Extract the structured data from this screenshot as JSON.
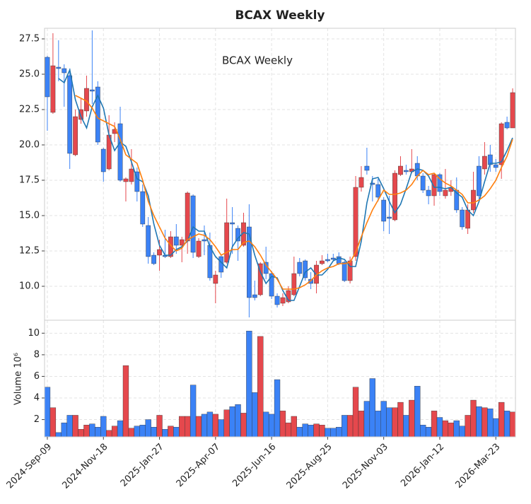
{
  "chart_data": {
    "type": "candlestick",
    "title": "BCAX  Weekly",
    "annotation": "BCAX  Weekly",
    "categories": [
      "2024-Sep-09",
      "2024-Sep-16",
      "2024-Sep-23",
      "2024-Sep-30",
      "2024-Oct-07",
      "2024-Oct-14",
      "2024-Oct-21",
      "2024-Oct-28",
      "2024-Nov-04",
      "2024-Nov-11",
      "2024-Nov-18",
      "2024-Nov-25",
      "2024-Dec-02",
      "2024-Dec-09",
      "2024-Dec-16",
      "2024-Dec-23",
      "2024-Dec-30",
      "2025-Jan-06",
      "2025-Jan-13",
      "2025-Jan-20",
      "2025-Jan-27",
      "2025-Feb-03",
      "2025-Feb-10",
      "2025-Feb-17",
      "2025-Feb-24",
      "2025-Mar-03",
      "2025-Mar-10",
      "2025-Mar-17",
      "2025-Mar-24",
      "2025-Mar-31",
      "2025-Apr-07",
      "2025-Apr-14",
      "2025-Apr-21",
      "2025-Apr-28",
      "2025-May-05",
      "2025-May-12",
      "2025-May-19",
      "2025-May-26",
      "2025-Jun-02",
      "2025-Jun-09",
      "2025-Jun-16",
      "2025-Jun-23",
      "2025-Jun-30",
      "2025-Jul-07",
      "2025-Jul-14",
      "2025-Jul-21",
      "2025-Jul-28",
      "2025-Aug-04",
      "2025-Aug-11",
      "2025-Aug-18",
      "2025-Aug-25",
      "2025-Sep-01",
      "2025-Sep-08",
      "2025-Sep-15",
      "2025-Sep-22",
      "2025-Sep-29",
      "2025-Oct-06",
      "2025-Oct-13",
      "2025-Oct-20",
      "2025-Oct-27",
      "2025-Nov-03",
      "2025-Nov-10",
      "2025-Nov-17",
      "2025-Nov-24",
      "2025-Dec-01",
      "2025-Dec-08",
      "2025-Dec-15",
      "2025-Dec-22",
      "2025-Dec-29",
      "2026-Jan-05",
      "2026-Jan-12",
      "2026-Jan-19",
      "2026-Jan-26",
      "2026-Feb-02",
      "2026-Feb-09",
      "2026-Feb-16",
      "2026-Feb-23",
      "2026-Mar-02",
      "2026-Mar-09",
      "2026-Mar-16",
      "2026-Mar-23",
      "2026-Mar-30",
      "2026-Apr-06",
      "2026-Apr-13"
    ],
    "xticks": [
      "2024-Sep-09",
      "2024-Nov-18",
      "2025-Jan-27",
      "2025-Apr-07",
      "2025-Jun-16",
      "2025-Aug-25",
      "2025-Nov-03",
      "2026-Jan-12",
      "2026-Mar-23"
    ],
    "open": [
      23.4,
      25.6,
      25.4,
      25.1,
      19.4,
      22.0,
      22.5,
      24.0,
      23.8,
      20.2,
      18.1,
      20.7,
      21.1,
      17.5,
      17.6,
      18.3,
      16.7,
      14.4,
      12.1,
      11.6,
      12.6,
      12.1,
      13.5,
      12.9,
      13.3,
      16.6,
      12.4,
      13.2,
      13.2,
      10.6,
      10.8,
      11.0,
      14.5,
      14.4,
      13.2,
      14.5,
      9.2,
      9.2,
      11.6,
      10.9,
      9.3,
      8.7,
      9.2,
      9.7,
      10.9,
      10.9,
      10.6,
      10.2,
      11.5,
      11.8,
      11.8,
      11.9,
      11.6,
      10.4,
      11.8,
      17.0,
      17.7,
      18.2,
      17.2,
      16.3,
      14.6,
      14.8,
      18.0,
      18.5,
      18.1,
      18.3,
      17.8,
      16.8,
      16.4,
      17.9,
      16.7,
      16.8,
      17.0,
      15.4,
      14.2,
      15.4,
      16.8,
      16.4,
      19.2,
      18.6,
      18.4,
      21.5,
      21.2,
      23.7
    ],
    "high": [
      26.3,
      27.9,
      27.4,
      25.7,
      25.4,
      22.5,
      23.3,
      24.9,
      28.1,
      24.5,
      19.8,
      22.1,
      21.6,
      22.7,
      17.7,
      19.7,
      18.4,
      17.2,
      14.9,
      12.4,
      13.3,
      14.0,
      13.9,
      14.4,
      13.5,
      16.7,
      16.5,
      13.4,
      14.3,
      13.8,
      11.1,
      12.2,
      16.2,
      15.6,
      14.3,
      15.2,
      15.8,
      10.4,
      11.7,
      12.8,
      11.1,
      9.5,
      9.5,
      10.0,
      12.1,
      12.0,
      11.9,
      11.0,
      11.8,
      12.2,
      12.3,
      12.3,
      12.4,
      11.8,
      12.1,
      17.8,
      18.5,
      19.8,
      17.8,
      17.6,
      16.3,
      16.4,
      18.2,
      19.2,
      18.6,
      19.7,
      19.2,
      18.0,
      17.1,
      18.0,
      18.0,
      18.3,
      17.5,
      17.7,
      15.6,
      15.8,
      18.1,
      19.2,
      20.2,
      20.0,
      19.0,
      21.6,
      22.0,
      24.0
    ],
    "low": [
      21.0,
      22.2,
      24.5,
      22.7,
      18.3,
      19.2,
      21.5,
      22.0,
      22.9,
      20.0,
      17.4,
      18.2,
      20.2,
      17.4,
      16.0,
      17.2,
      16.0,
      14.2,
      11.6,
      11.5,
      11.1,
      12.0,
      12.0,
      12.3,
      11.7,
      12.3,
      12.0,
      12.0,
      12.2,
      10.4,
      8.8,
      10.6,
      11.6,
      12.3,
      11.8,
      12.8,
      7.8,
      9.0,
      9.3,
      10.5,
      9.1,
      8.5,
      8.6,
      8.8,
      9.3,
      10.7,
      10.4,
      9.8,
      9.5,
      11.5,
      11.7,
      11.8,
      11.5,
      10.3,
      10.2,
      11.8,
      16.7,
      17.9,
      16.0,
      16.0,
      13.9,
      13.7,
      14.6,
      17.8,
      17.9,
      18.0,
      17.5,
      16.6,
      15.8,
      15.7,
      16.4,
      16.2,
      16.4,
      15.2,
      14.0,
      13.7,
      15.2,
      16.1,
      17.9,
      18.1,
      18.1,
      17.6,
      21.1,
      21.2
    ],
    "close": [
      26.2,
      22.3,
      25.5,
      25.4,
      24.9,
      19.3,
      21.8,
      22.4,
      23.9,
      24.1,
      19.7,
      18.3,
      20.8,
      21.5,
      17.4,
      17.4,
      18.1,
      16.7,
      14.3,
      12.2,
      12.2,
      12.2,
      12.1,
      13.5,
      12.9,
      13.2,
      16.4,
      12.1,
      13.3,
      12.9,
      10.2,
      12.1,
      11.7,
      14.5,
      14.1,
      12.9,
      14.2,
      9.4,
      9.4,
      11.7,
      10.9,
      9.3,
      8.8,
      8.9,
      9.4,
      11.7,
      11.8,
      10.5,
      10.2,
      11.6,
      11.9,
      12.0,
      12.1,
      11.7,
      10.4,
      12.1,
      17.0,
      18.5,
      17.3,
      17.2,
      16.1,
      14.9,
      14.7,
      17.9,
      18.2,
      18.1,
      18.7,
      17.8,
      16.8,
      16.4,
      17.9,
      16.4,
      16.7,
      16.8,
      15.4,
      14.1,
      15.4,
      18.5,
      18.3,
      19.3,
      18.6,
      18.6,
      21.6,
      21.2
    ],
    "up_color": "#3b82f6",
    "down_color": "#e5484d",
    "series": [
      {
        "color": "#1f77b4",
        "values": [
          null,
          null,
          24.7,
          24.4,
          25.3,
          23.2,
          22.0,
          21.2,
          22.7,
          23.5,
          22.6,
          20.7,
          19.6,
          20.2,
          19.9,
          18.8,
          17.6,
          17.4,
          16.4,
          14.4,
          12.9,
          12.2,
          12.2,
          12.6,
          12.8,
          13.2,
          14.2,
          13.9,
          13.9,
          12.8,
          12.1,
          11.7,
          11.3,
          12.8,
          13.4,
          13.8,
          13.7,
          12.2,
          11.0,
          10.2,
          10.7,
          10.6,
          9.7,
          9.0,
          9.0,
          10.0,
          11.0,
          11.3,
          10.8,
          10.8,
          11.2,
          11.8,
          12.0,
          11.9,
          11.4,
          11.4,
          13.2,
          15.9,
          17.6,
          17.7,
          16.9,
          16.0,
          15.2,
          15.8,
          16.9,
          18.1,
          18.3,
          18.2,
          17.8,
          17.0,
          17.0,
          16.9,
          17.0,
          16.6,
          16.3,
          15.4,
          15.0,
          16.0,
          17.4,
          18.7,
          18.7,
          18.8,
          19.6,
          20.5
        ]
      },
      {
        "color": "#ff7f0e",
        "values": [
          null,
          null,
          null,
          null,
          null,
          23.5,
          23.3,
          23.1,
          22.6,
          21.9,
          21.7,
          21.5,
          21.3,
          20.4,
          19.3,
          19.0,
          18.7,
          17.5,
          16.0,
          15.0,
          14.2,
          13.4,
          12.9,
          12.5,
          12.7,
          13.3,
          13.5,
          13.7,
          13.6,
          13.3,
          12.8,
          12.2,
          12.4,
          12.6,
          12.6,
          13.1,
          13.2,
          12.8,
          12.2,
          11.5,
          11.0,
          10.5,
          9.8,
          9.8,
          9.8,
          9.9,
          10.1,
          10.4,
          10.8,
          11.1,
          11.3,
          11.4,
          11.6,
          11.6,
          11.7,
          12.4,
          13.5,
          14.5,
          15.4,
          16.1,
          16.8,
          16.5,
          16.5,
          16.6,
          16.8,
          17.2,
          17.8,
          18.2,
          17.9,
          18.0,
          17.6,
          17.3,
          17.1,
          16.8,
          16.5,
          15.9,
          15.9,
          16.1,
          16.4,
          16.9,
          17.5,
          18.4,
          19.2,
          20.4
        ]
      }
    ],
    "ylim": [
      7.6,
      28.25
    ],
    "yticks": [
      {
        "value": 10,
        "label": "10.0"
      },
      12.5,
      {
        "value": 15,
        "label": "15.0"
      },
      17.5,
      {
        "value": 20,
        "label": "20.0"
      },
      22.5,
      {
        "value": 25,
        "label": "25.0"
      },
      27.5
    ],
    "grid": true,
    "volume": {
      "ylabel": "Volume  10⁶",
      "values": [
        5.0,
        3.1,
        0.8,
        1.7,
        2.4,
        2.4,
        1.1,
        1.5,
        1.6,
        1.3,
        2.3,
        1.0,
        1.4,
        1.9,
        7.0,
        1.2,
        1.4,
        1.5,
        2.0,
        1.3,
        2.4,
        1.1,
        1.4,
        1.3,
        2.3,
        2.3,
        5.2,
        2.3,
        2.5,
        2.7,
        2.5,
        2.0,
        2.9,
        3.2,
        3.4,
        2.6,
        10.2,
        4.5,
        9.7,
        2.7,
        2.5,
        5.7,
        2.8,
        1.7,
        2.3,
        1.3,
        1.6,
        1.5,
        1.6,
        1.5,
        1.2,
        1.2,
        1.3,
        2.4,
        2.4,
        5.0,
        2.8,
        3.7,
        5.8,
        2.8,
        3.7,
        3.1,
        3.1,
        3.6,
        2.4,
        3.8,
        5.1,
        1.5,
        1.3,
        2.8,
        2.2,
        1.9,
        1.7,
        1.9,
        1.4,
        2.4,
        3.8,
        3.2,
        3.1,
        3.0,
        2.1,
        3.6,
        2.8,
        2.7
      ],
      "ylim": [
        0.4,
        11.2
      ],
      "yticks": [
        2,
        4,
        6,
        8,
        10
      ]
    }
  }
}
